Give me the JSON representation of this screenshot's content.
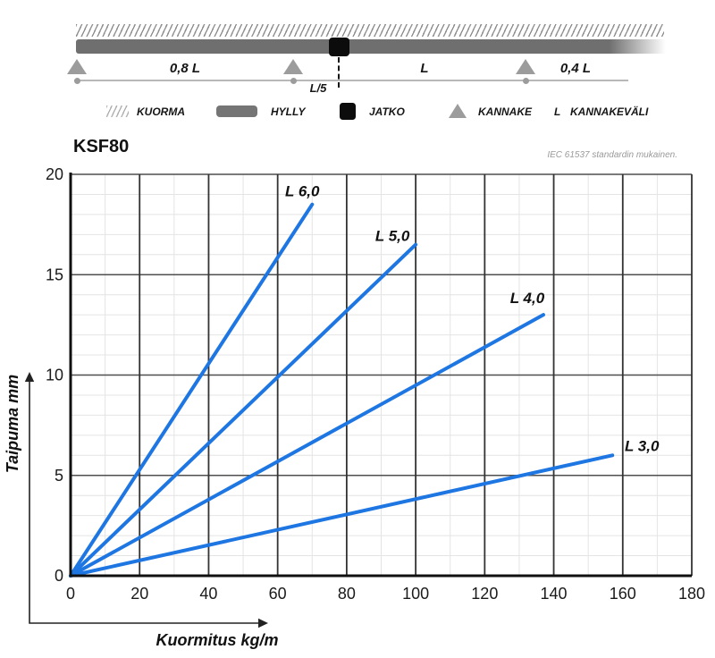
{
  "title": "KSF80",
  "standard_note": "IEC 61537 standardin mukainen.",
  "diagram": {
    "left_span": "0,8 L",
    "joint_offset": "L/5",
    "mid_span": "L",
    "right_span": "0,4 L"
  },
  "legend": {
    "items": [
      {
        "label": "KUORMA"
      },
      {
        "label": "HYLLY"
      },
      {
        "label": "JATKO"
      },
      {
        "label": "KANNAKE"
      },
      {
        "symbol": "L",
        "label": "KANNAKEVÄLI"
      }
    ]
  },
  "chart_data": {
    "type": "line",
    "title": "KSF80",
    "subtitle": "IEC 61537 standardin mukainen.",
    "xlabel": "Kuormitus kg/m",
    "ylabel": "Taipuma mm",
    "xlim": [
      0,
      180
    ],
    "ylim": [
      0,
      20
    ],
    "x_ticks": [
      0,
      20,
      40,
      60,
      80,
      100,
      120,
      140,
      160,
      180
    ],
    "y_ticks": [
      0,
      5,
      10,
      15,
      20
    ],
    "x_minor_step": 10,
    "y_minor_step": 1,
    "grid": true,
    "legend_position": "inline-labels",
    "line_color": "#1d76e2",
    "series": [
      {
        "name": "L 6,0",
        "points": [
          [
            0,
            0
          ],
          [
            70,
            18.5
          ]
        ]
      },
      {
        "name": "L 5,0",
        "points": [
          [
            0,
            0
          ],
          [
            100,
            16.5
          ]
        ]
      },
      {
        "name": "L 4,0",
        "points": [
          [
            0,
            0
          ],
          [
            137,
            13.0
          ]
        ]
      },
      {
        "name": "L 3,0",
        "points": [
          [
            0,
            0
          ],
          [
            157,
            6.0
          ]
        ]
      }
    ]
  },
  "colors": {
    "line_blue": "#1d76e2",
    "shelf_gray": "#6f6f6f",
    "support_gray": "#9c9c9c",
    "joint_black": "#0c0c0c"
  }
}
